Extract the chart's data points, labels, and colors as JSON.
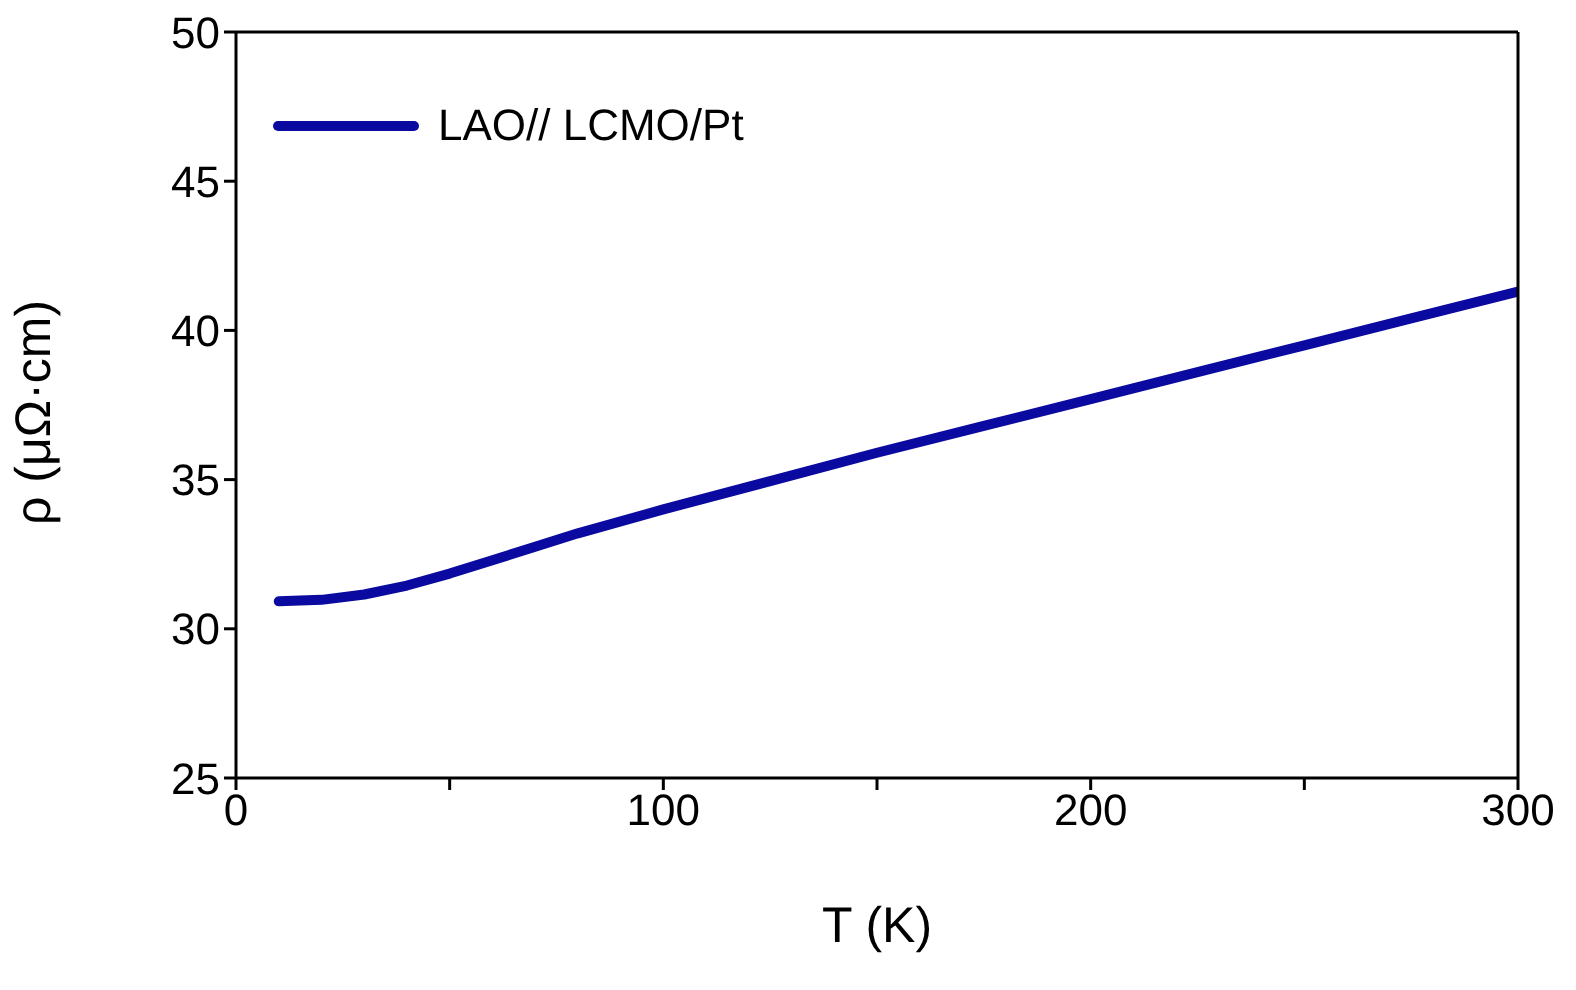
{
  "chart_data": {
    "type": "line",
    "xlabel": "T (K)",
    "ylabel": "ρ (μΩ·cm)",
    "xlim": [
      0,
      300
    ],
    "xticks": [
      0,
      {
        "value": 50,
        "label": null
      },
      100,
      {
        "value": 150,
        "label": null
      },
      200,
      {
        "value": 250,
        "label": null
      },
      300
    ],
    "ylim": [
      25,
      50
    ],
    "yticks": [
      25,
      30,
      35,
      40,
      45,
      50
    ],
    "legend": "top left",
    "marker": "none",
    "line_style": "solid",
    "series": [
      {
        "name": "LAO// LCMO/Pt",
        "color": "#0a0aa0",
        "x": [
          10,
          20,
          30,
          40,
          50,
          60,
          70,
          80,
          100,
          125,
          150,
          175,
          200,
          225,
          250,
          275,
          300
        ],
        "values": [
          30.92,
          30.97,
          31.15,
          31.45,
          31.85,
          32.3,
          32.75,
          33.2,
          34.0,
          34.95,
          35.9,
          36.8,
          37.7,
          38.6,
          39.5,
          40.4,
          41.3
        ]
      }
    ]
  }
}
